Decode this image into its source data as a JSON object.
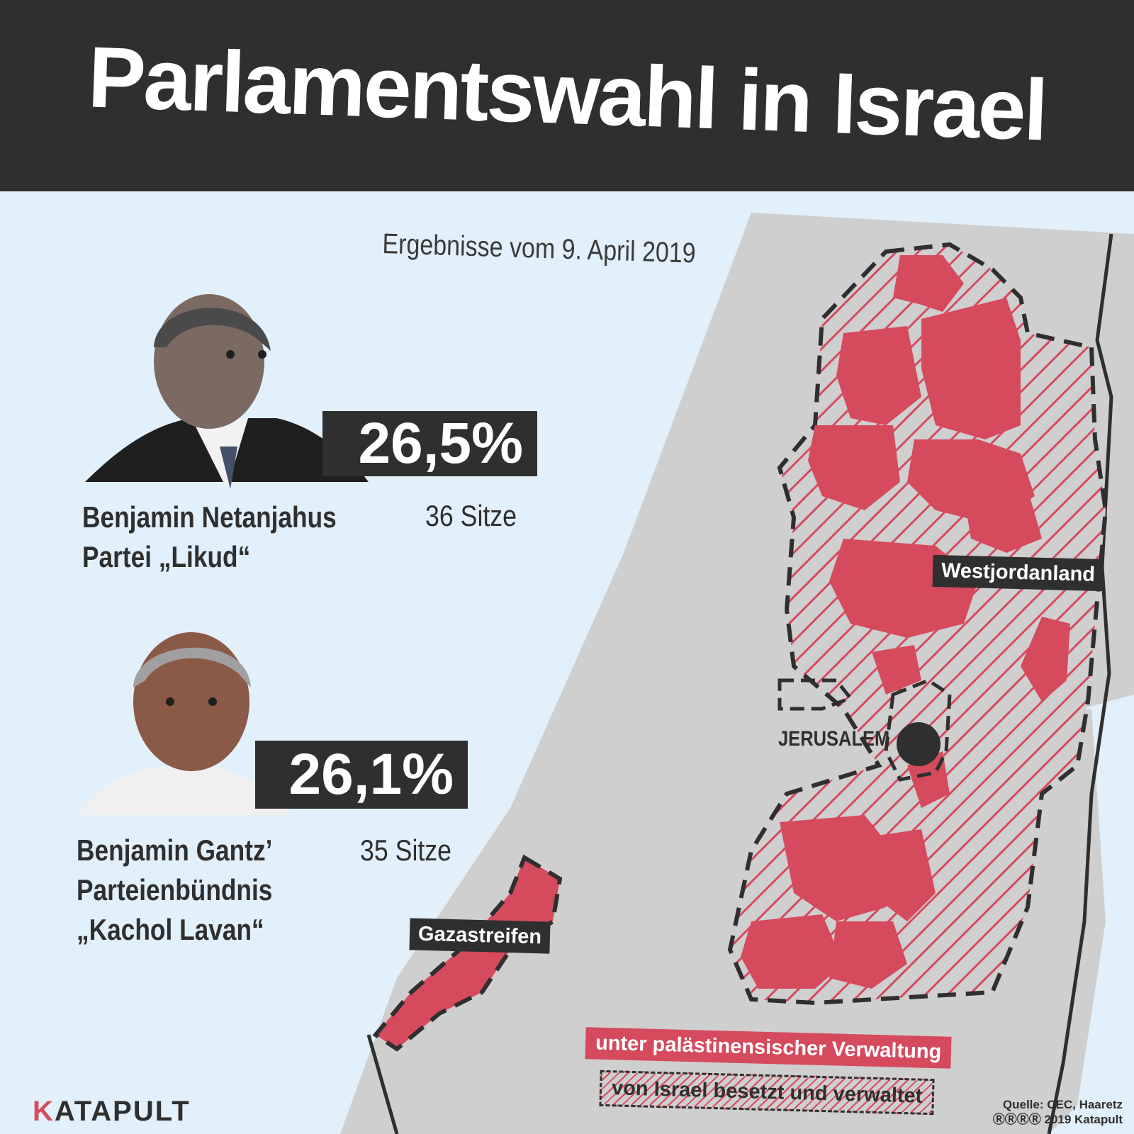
{
  "header": {
    "title": "Parlamentswahl in Israel"
  },
  "subtitle": "Ergebnisse vom 9. April 2019",
  "results": [
    {
      "percent": "26,5%",
      "seats": "36 Sitze",
      "party_line1": "Benjamin Netanjahus",
      "party_line2": "Partei „Likud“"
    },
    {
      "percent": "26,1%",
      "seats": "35 Sitze",
      "party_line1": "Benjamin Gantz’",
      "party_line2": "Parteienbündnis",
      "party_line3": "„Kachol Lavan“"
    }
  ],
  "map": {
    "labels": {
      "westbank": "Westjordanland",
      "gaza": "Gazastreifen",
      "jerusalem": "JERUSALEM"
    },
    "colors": {
      "sea": "#e1f0fa",
      "land": "#cfcfcf",
      "palestinian_admin": "#d64a5e",
      "dark": "#2f2f2f"
    }
  },
  "legend": {
    "palestinian_admin": "unter palästinensischer Verwaltung",
    "israeli_occupied": "von Israel besetzt und verwaltet"
  },
  "brand": {
    "logo_k": "K",
    "logo_rest": "ATAPULT"
  },
  "source": {
    "line1": "Quelle: CEC, Haaretz",
    "line2": "2019 Katapult"
  }
}
